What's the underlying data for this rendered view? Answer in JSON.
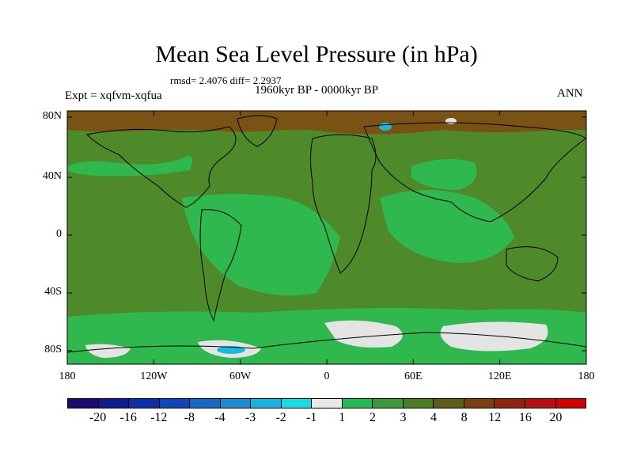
{
  "title": "Mean Sea Level Pressure (in hPa)",
  "stats": "rmsd= 2.4076 diff= 2.2937",
  "period": "1960kyr BP - 0000kyr BP",
  "experiment": "Expt = xqfvm-xqfua",
  "season": "ANN",
  "y_ticks": [
    "80N",
    "40N",
    "0",
    "40S",
    "80S"
  ],
  "x_ticks": [
    "180",
    "120W",
    "60W",
    "0",
    "60E",
    "120E",
    "180"
  ],
  "colorbar": {
    "labels": [
      "-20",
      "-16",
      "-12",
      "-8",
      "-4",
      "-3",
      "-2",
      "-1",
      "1",
      "2",
      "3",
      "4",
      "8",
      "12",
      "16",
      "20"
    ],
    "colors": [
      "#1f0a6e",
      "#0f1c8f",
      "#0c2fa6",
      "#0e48b8",
      "#1569c4",
      "#1c8cd2",
      "#18b4e0",
      "#19dbe8",
      "#e8e8e8",
      "#22bb55",
      "#3a9a3a",
      "#4a7d22",
      "#5e5d16",
      "#7a3e10",
      "#8e2410",
      "#b81010",
      "#d40000"
    ]
  },
  "colors": {
    "ocean_green": "#4f8a2a",
    "light_green": "#2eb84e",
    "polar_brown": "#7a5214",
    "low_gray": "#e4e4e4",
    "low_blue": "#19b8e0"
  }
}
